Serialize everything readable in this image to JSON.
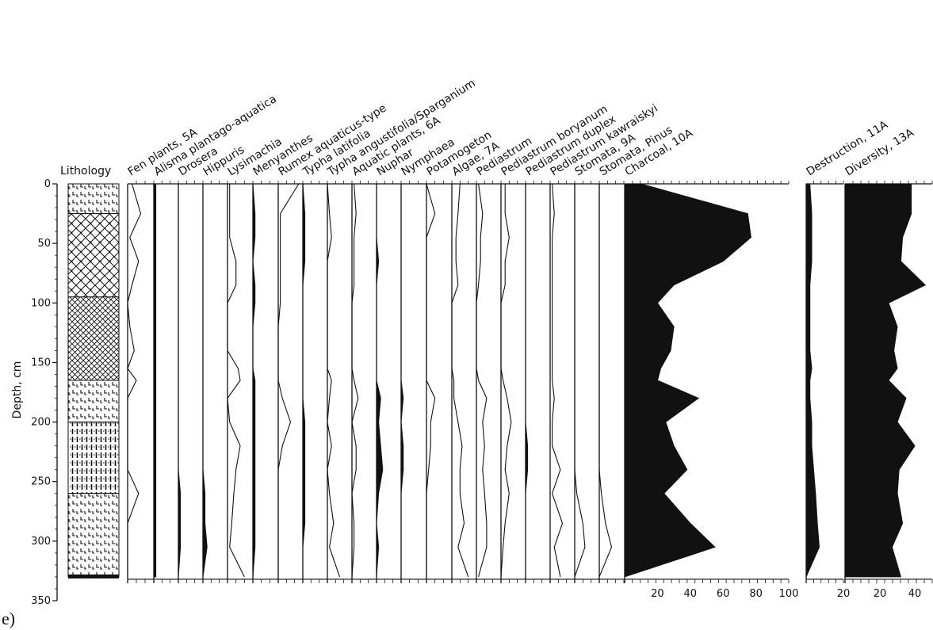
{
  "figure_label": "e)",
  "colors": {
    "ink": "#111111",
    "fill": "#111111",
    "background": "#ffffff"
  },
  "chart_data": {
    "type": "area",
    "ylabel": "Depth, cm",
    "ylim": [
      0,
      350
    ],
    "y_inverted": true,
    "y_ticks": [
      0,
      50,
      100,
      150,
      200,
      250,
      300,
      350
    ],
    "depths": [
      0,
      25,
      45,
      65,
      85,
      100,
      120,
      140,
      155,
      165,
      180,
      200,
      220,
      240,
      260,
      285,
      305,
      330
    ],
    "lithology": {
      "label": "Lithology",
      "layers": [
        {
          "from": 0,
          "to": 25,
          "pattern": "peat"
        },
        {
          "from": 25,
          "to": 95,
          "pattern": "cross-hatch"
        },
        {
          "from": 95,
          "to": 165,
          "pattern": "dense-cross-hatch"
        },
        {
          "from": 165,
          "to": 200,
          "pattern": "peat"
        },
        {
          "from": 200,
          "to": 260,
          "pattern": "vertical-bars"
        },
        {
          "from": 260,
          "to": 330,
          "pattern": "peat"
        }
      ]
    },
    "series": [
      {
        "name": "Fen plants, 5A",
        "style": "line",
        "values": [
          2,
          6,
          1,
          5,
          2,
          0,
          1,
          3,
          0,
          4,
          0,
          0,
          0,
          0,
          5,
          0,
          0,
          0
        ]
      },
      {
        "name": "Alisma plantago-aquatica",
        "style": "fill",
        "values": [
          1,
          1,
          1,
          1,
          1,
          1,
          1,
          1,
          1,
          1,
          1,
          1,
          1,
          1,
          1,
          1,
          1,
          1
        ]
      },
      {
        "name": "Drosera",
        "style": "fill",
        "values": [
          0,
          0,
          0,
          0,
          0,
          0,
          0,
          0,
          0,
          0,
          0,
          0,
          0,
          0,
          1,
          1,
          1,
          0
        ]
      },
      {
        "name": "Hippuris",
        "style": "fill",
        "values": [
          0,
          0,
          0,
          0,
          0,
          0,
          0,
          0,
          0,
          0,
          0,
          0,
          0,
          0,
          1,
          1,
          2,
          0
        ]
      },
      {
        "name": "Lysimachia",
        "style": "line",
        "values": [
          1,
          1,
          1,
          4,
          4,
          0,
          0,
          0,
          5,
          6,
          0,
          1,
          6,
          4,
          3,
          2,
          1,
          8
        ]
      },
      {
        "name": "Menyanthes",
        "style": "fill",
        "values": [
          0,
          1,
          1,
          0,
          1,
          1,
          0,
          0,
          0,
          1,
          1,
          1,
          1,
          1,
          1,
          1,
          1,
          0
        ]
      },
      {
        "name": "Rumex aquaticus-type",
        "style": "line",
        "values": [
          10,
          1,
          1,
          1,
          1,
          1,
          0,
          0,
          0,
          0,
          2,
          6,
          2,
          0,
          0,
          0,
          0,
          0
        ]
      },
      {
        "name": "Typha latifolia",
        "style": "fill",
        "values": [
          0,
          1,
          1,
          1,
          0,
          0,
          0,
          0,
          0,
          0,
          0,
          1,
          1,
          1,
          1,
          1,
          0,
          0
        ]
      },
      {
        "name": "Typha angustifolia/Sparganium",
        "style": "line",
        "values": [
          0,
          1,
          2,
          0,
          0,
          0,
          0,
          0,
          0,
          2,
          1,
          0,
          2,
          0,
          1,
          3,
          1,
          6
        ]
      },
      {
        "name": "Aquatic plants, 6A",
        "style": "line",
        "values": [
          1,
          2,
          1,
          1,
          1,
          0,
          0,
          0,
          0,
          1,
          3,
          0,
          2,
          2,
          0,
          1,
          1,
          0
        ]
      },
      {
        "name": "Nuphar",
        "style": "fill",
        "values": [
          0,
          0,
          0,
          1,
          0,
          0,
          0,
          0,
          0,
          0,
          2,
          1,
          2,
          3,
          1,
          0,
          1,
          0
        ]
      },
      {
        "name": "Nymphaea",
        "style": "fill",
        "values": [
          0,
          0,
          0,
          0,
          0,
          0,
          0,
          0,
          0,
          0,
          1,
          0,
          1,
          1,
          0,
          0,
          0,
          0
        ]
      },
      {
        "name": "Potamogeton",
        "style": "line",
        "values": [
          0,
          4,
          0,
          0,
          0,
          0,
          0,
          0,
          0,
          0,
          4,
          2,
          2,
          1,
          0,
          0,
          0,
          0
        ]
      },
      {
        "name": "Algae, 7A",
        "style": "line",
        "values": [
          4,
          3,
          2,
          2,
          3,
          0,
          0,
          0,
          0,
          1,
          1,
          3,
          5,
          4,
          4,
          6,
          3,
          8
        ]
      },
      {
        "name": "Pediastrum",
        "style": "line",
        "values": [
          1,
          3,
          2,
          2,
          1,
          0,
          0,
          0,
          0,
          1,
          5,
          3,
          4,
          3,
          4,
          5,
          5,
          1
        ]
      },
      {
        "name": "Pediastrum boryanum",
        "style": "line",
        "values": [
          2,
          2,
          4,
          2,
          2,
          0,
          0,
          0,
          0,
          1,
          3,
          5,
          3,
          2,
          4,
          2,
          1,
          0
        ]
      },
      {
        "name": "Pediastrum duplex",
        "style": "fill",
        "values": [
          0,
          0,
          0,
          0,
          0,
          0,
          0,
          0,
          0,
          0,
          0,
          0,
          1,
          1,
          0,
          0,
          0,
          0
        ]
      },
      {
        "name": "Pediastrum kawraiskyi",
        "style": "line",
        "values": [
          1,
          2,
          1,
          1,
          1,
          1,
          1,
          1,
          1,
          1,
          2,
          1,
          1,
          5,
          1,
          6,
          2,
          5
        ]
      },
      {
        "name": "Stomata, 9A",
        "style": "line",
        "values": [
          0,
          0,
          0,
          0,
          0,
          0,
          0,
          0,
          0,
          0,
          0,
          0,
          0,
          0,
          1,
          4,
          5,
          0
        ]
      },
      {
        "name": "Stomata, Pinus",
        "style": "line",
        "values": [
          0,
          0,
          0,
          0,
          0,
          0,
          0,
          0,
          0,
          0,
          0,
          0,
          0,
          0,
          1,
          3,
          6,
          0
        ]
      },
      {
        "name": "Charcoal, 10A",
        "style": "fill",
        "xlim": [
          0,
          100
        ],
        "x_ticks": [
          20,
          40,
          60,
          80,
          100
        ],
        "values": [
          10,
          75,
          77,
          60,
          30,
          20,
          30,
          28,
          22,
          20,
          45,
          25,
          30,
          38,
          24,
          40,
          55,
          0
        ]
      },
      {
        "name": "Destruction, 11A",
        "style": "fill",
        "xlim": [
          0,
          20
        ],
        "x_ticks": [
          20
        ],
        "values": [
          2,
          3,
          3,
          3,
          2,
          2,
          2,
          2,
          3,
          2,
          2,
          3,
          3,
          4,
          5,
          6,
          7,
          0
        ]
      },
      {
        "name": "Diversity, 13A",
        "style": "fill",
        "xlim": [
          0,
          50
        ],
        "x_ticks": [
          20,
          40
        ],
        "values": [
          38,
          38,
          33,
          32,
          46,
          25,
          30,
          28,
          30,
          25,
          35,
          30,
          40,
          31,
          30,
          33,
          27,
          32
        ]
      }
    ]
  }
}
